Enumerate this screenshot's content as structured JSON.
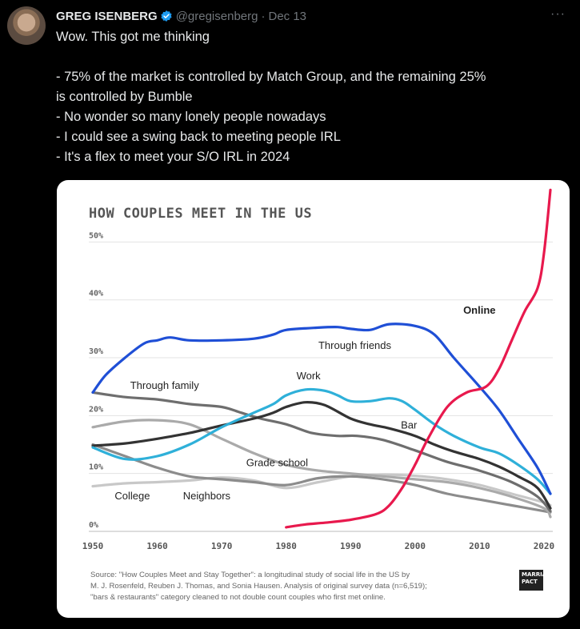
{
  "tweet": {
    "author_name": "GREG ISENBERG",
    "handle": "@gregisenberg",
    "separator": "·",
    "date": "Dec 13",
    "more": "···",
    "lines": [
      "Wow. This got me thinking",
      "",
      "- 75% of the market is controlled by Match Group, and the remaining 25%",
      "is controlled by Bumble",
      "- No wonder so many lonely people nowadays",
      "- I could see a swing back to meeting people IRL",
      "- It's a flex to meet your S/O IRL in 2024"
    ],
    "colors": {
      "background": "#000000",
      "text": "#e7e9ea",
      "muted": "#71767b",
      "verified": "#1d9bf0"
    }
  },
  "card": {
    "source_lines": [
      "Source: \"How Couples Meet and Stay Together\": a longitudinal study of social life in the US by",
      "M. J. Rosenfeld, Reuben J. Thomas, and Sonia Hausen. Analysis of original survey data (n=6,519);",
      "\"bars & restaurants\" category cleaned to not double count couples who first met online."
    ],
    "logo_text": "MARRIAGE PACT"
  },
  "chart_data": {
    "type": "line",
    "title": "HOW COUPLES MEET IN THE US",
    "xlabel": "",
    "ylabel": "",
    "xlim": [
      1950,
      2021
    ],
    "ylim": [
      0,
      56
    ],
    "xticks": [
      1950,
      1960,
      1970,
      1980,
      1990,
      2000,
      2010,
      2020
    ],
    "yticks": [
      0,
      10,
      20,
      30,
      40,
      50
    ],
    "ytick_labels": [
      "0%",
      "10%",
      "20%",
      "30%",
      "40%",
      "50%"
    ],
    "grid": "horizontal",
    "series": [
      {
        "name": "Through friends",
        "color": "#1f4fd6",
        "x": [
          1950,
          1952,
          1955,
          1958,
          1960,
          1962,
          1965,
          1970,
          1975,
          1978,
          1980,
          1985,
          1988,
          1990,
          1993,
          1996,
          2000,
          2003,
          2006,
          2010,
          2013,
          2016,
          2019,
          2021
        ],
        "y": [
          24,
          27,
          30,
          32.5,
          33,
          33.5,
          33,
          33,
          33.3,
          34,
          34.8,
          35.2,
          35.3,
          35,
          34.8,
          35.8,
          35.5,
          34,
          30,
          25,
          21,
          16,
          11,
          6.5
        ]
      },
      {
        "name": "Online",
        "color": "#e8194d",
        "x": [
          1980,
          1983,
          1986,
          1990,
          1994,
          1996,
          1998,
          2000,
          2002,
          2005,
          2008,
          2011,
          2013,
          2015,
          2017,
          2019,
          2020,
          2021
        ],
        "y": [
          0.7,
          1.2,
          1.5,
          2,
          3,
          4.5,
          7.5,
          11.5,
          16,
          21.5,
          24,
          25,
          28,
          33,
          38,
          42,
          48,
          59
        ]
      },
      {
        "name": "Work",
        "color": "#2fb0d9",
        "x": [
          1950,
          1955,
          1960,
          1965,
          1970,
          1975,
          1978,
          1980,
          1983,
          1986,
          1988,
          1990,
          1993,
          1996,
          1998,
          2000,
          2003,
          2006,
          2010,
          2013,
          2016,
          2019,
          2021
        ],
        "y": [
          14.5,
          12.5,
          13,
          15,
          18,
          20.5,
          22,
          23.5,
          24.5,
          24.3,
          23.5,
          22.5,
          22.5,
          23,
          22.5,
          21,
          18.5,
          16.5,
          14.5,
          13.5,
          11.5,
          9,
          6.5
        ]
      },
      {
        "name": "Bar",
        "color": "#333333",
        "x": [
          1950,
          1955,
          1960,
          1965,
          1970,
          1975,
          1978,
          1980,
          1983,
          1986,
          1990,
          1993,
          1996,
          2000,
          2003,
          2006,
          2010,
          2013,
          2016,
          2019,
          2021
        ],
        "y": [
          14.8,
          15.2,
          16,
          17,
          18.3,
          19.5,
          20.5,
          21.5,
          22.3,
          21.8,
          19.5,
          18.5,
          17.8,
          16.5,
          15,
          13.8,
          12.5,
          11.2,
          9.5,
          7.5,
          4
        ]
      },
      {
        "name": "Through family",
        "color": "#6e6e6e",
        "x": [
          1950,
          1955,
          1960,
          1965,
          1970,
          1973,
          1976,
          1980,
          1984,
          1988,
          1991,
          1995,
          2000,
          2005,
          2010,
          2015,
          2019,
          2021
        ],
        "y": [
          24,
          23.2,
          22.8,
          22,
          21.5,
          20.5,
          19.5,
          18.5,
          17,
          16.5,
          16.5,
          15.8,
          14,
          12,
          10.5,
          8.5,
          6,
          3.5
        ]
      },
      {
        "name": "Grade school",
        "color": "#aaaaaa",
        "x": [
          1950,
          1955,
          1960,
          1965,
          1970,
          1975,
          1980,
          1985,
          1990,
          1995,
          2000,
          2005,
          2010,
          2015,
          2020,
          2021
        ],
        "y": [
          18,
          19,
          19.2,
          18.5,
          16,
          13.5,
          11.5,
          10.5,
          10,
          9.5,
          9,
          8.5,
          7.5,
          6,
          4,
          2.5
        ]
      },
      {
        "name": "Neighbors",
        "color": "#8c8c8c",
        "x": [
          1950,
          1955,
          1960,
          1965,
          1970,
          1975,
          1980,
          1985,
          1990,
          1995,
          2000,
          2005,
          2010,
          2015,
          2020,
          2021
        ],
        "y": [
          15,
          13,
          11,
          9.5,
          9,
          8.5,
          8,
          9.2,
          9.5,
          9,
          8,
          6.5,
          5.5,
          4.5,
          3.5,
          3.3
        ]
      },
      {
        "name": "College",
        "color": "#c8c8c8",
        "x": [
          1950,
          1955,
          1960,
          1965,
          1970,
          1975,
          1980,
          1985,
          1990,
          1995,
          2000,
          2005,
          2010,
          2015,
          2020,
          2021
        ],
        "y": [
          7.8,
          8.3,
          8.5,
          8.8,
          9.3,
          8.8,
          7.5,
          8.5,
          9.5,
          9.8,
          9.6,
          9,
          8,
          6.5,
          5,
          4.5
        ]
      }
    ],
    "annotations": [
      "Through friends",
      "Online",
      "Work",
      "Bar",
      "Through family",
      "Grade school",
      "Neighbors",
      "College"
    ]
  }
}
